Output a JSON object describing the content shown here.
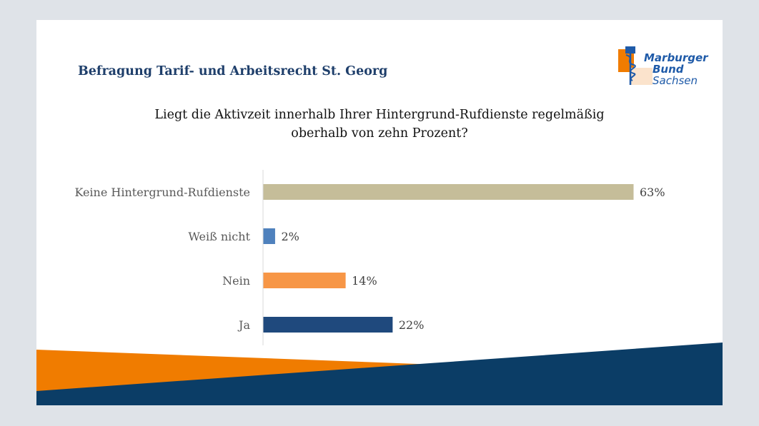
{
  "header": {
    "title": "Befragung Tarif- und Arbeitsrecht St. Georg"
  },
  "logo": {
    "line1": "Marburger",
    "line2": "Bund",
    "line3": "Sachsen"
  },
  "question": {
    "line1": "Liegt die Aktivzeit innerhalb Ihrer Hintergrund-Rufdienste regelmäßig",
    "line2": "oberhalb von zehn Prozent?"
  },
  "colors": {
    "title": "#1f3f6b",
    "orange": "#f07c00",
    "navy": "#0b3d66",
    "logo_blue": "#1e5aa8"
  },
  "chart_data": {
    "type": "bar",
    "orientation": "horizontal",
    "categories": [
      "Keine Hintergrund-Rufdienste",
      "Weiß nicht",
      "Nein",
      "Ja"
    ],
    "values": [
      63,
      2,
      14,
      22
    ],
    "value_labels": [
      "63%",
      "2%",
      "14%",
      "22%"
    ],
    "colors": [
      "#c5bd99",
      "#4f81bd",
      "#f79646",
      "#1f497d"
    ],
    "xlim": [
      0,
      63
    ],
    "grid": false,
    "legend": "none"
  }
}
